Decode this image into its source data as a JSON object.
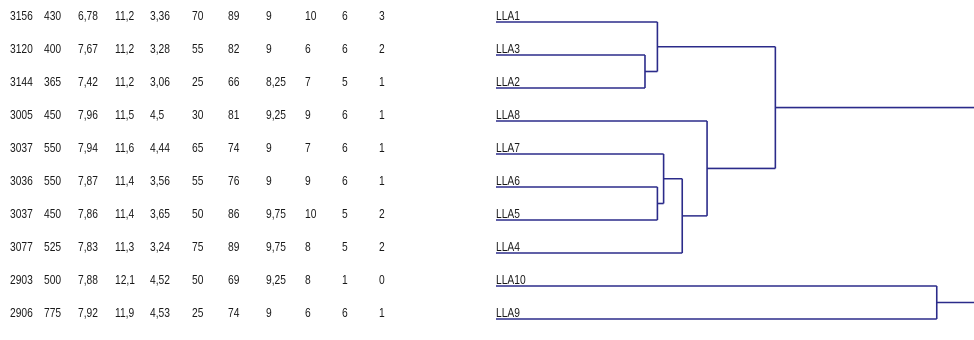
{
  "table": {
    "rows": [
      [
        "3156",
        "430",
        "6,78",
        "11,2",
        "3,36",
        "70",
        "89",
        "9",
        "10",
        "6",
        "3"
      ],
      [
        "3120",
        "400",
        "7,67",
        "11,2",
        "3,28",
        "55",
        "82",
        "9",
        "6",
        "6",
        "2"
      ],
      [
        "3144",
        "365",
        "7,42",
        "11,2",
        "3,06",
        "25",
        "66",
        "8,25",
        "7",
        "5",
        "1"
      ],
      [
        "3005",
        "450",
        "7,96",
        "11,5",
        "4,5",
        "30",
        "81",
        "9,25",
        "9",
        "6",
        "1"
      ],
      [
        "3037",
        "550",
        "7,94",
        "11,6",
        "4,44",
        "65",
        "74",
        "9",
        "7",
        "6",
        "1"
      ],
      [
        "3036",
        "550",
        "7,87",
        "11,4",
        "3,56",
        "55",
        "76",
        "9",
        "9",
        "6",
        "1"
      ],
      [
        "3037",
        "450",
        "7,86",
        "11,4",
        "3,65",
        "50",
        "86",
        "9,75",
        "10",
        "5",
        "2"
      ],
      [
        "3077",
        "525",
        "7,83",
        "11,3",
        "3,24",
        "75",
        "89",
        "9,75",
        "8",
        "5",
        "2"
      ],
      [
        "2903",
        "500",
        "7,88",
        "12,1",
        "4,52",
        "50",
        "69",
        "9,25",
        "8",
        "1",
        "0"
      ],
      [
        "2906",
        "775",
        "7,92",
        "11,9",
        "4,53",
        "25",
        "74",
        "9",
        "6",
        "6",
        "1"
      ]
    ]
  },
  "dendrogram": {
    "leaves": [
      "LLA1",
      "LLA3",
      "LLA2",
      "LLA8",
      "LLA7",
      "LLA6",
      "LLA5",
      "LLA4",
      "LLA10",
      "LLA9"
    ],
    "line_color": "#2b2b8a",
    "merges": [
      {
        "a": 1,
        "b": 2,
        "height": 0.24
      },
      {
        "a": 0,
        "b": "m0",
        "height": 0.26
      },
      {
        "a": 5,
        "b": 6,
        "height": 0.26
      },
      {
        "a": 4,
        "b": "m2",
        "height": 0.27
      },
      {
        "a": 7,
        "b": "m3",
        "height": 0.3
      },
      {
        "a": 3,
        "b": "m4",
        "height": 0.34
      },
      {
        "a": "m1",
        "b": "m5",
        "height": 0.45
      },
      {
        "a": 8,
        "b": 9,
        "height": 0.71
      }
    ]
  }
}
